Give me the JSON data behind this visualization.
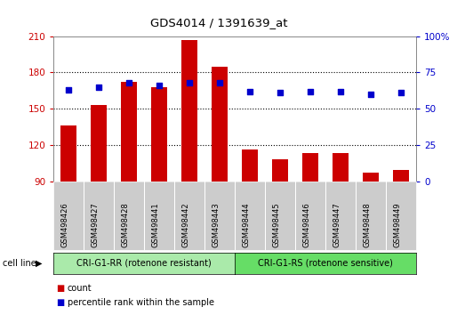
{
  "title": "GDS4014 / 1391639_at",
  "samples": [
    "GSM498426",
    "GSM498427",
    "GSM498428",
    "GSM498441",
    "GSM498442",
    "GSM498443",
    "GSM498444",
    "GSM498445",
    "GSM498446",
    "GSM498447",
    "GSM498448",
    "GSM498449"
  ],
  "counts": [
    136,
    153,
    172,
    168,
    207,
    185,
    116,
    108,
    113,
    113,
    97,
    99
  ],
  "percentile_ranks": [
    63,
    65,
    68,
    66,
    68,
    68,
    62,
    61,
    62,
    62,
    60,
    61
  ],
  "bar_color": "#cc0000",
  "dot_color": "#0000cc",
  "ylim_left": [
    90,
    210
  ],
  "ylim_right": [
    0,
    100
  ],
  "yticks_left": [
    90,
    120,
    150,
    180,
    210
  ],
  "yticks_right": [
    0,
    25,
    50,
    75,
    100
  ],
  "group1_label": "CRI-G1-RR (rotenone resistant)",
  "group2_label": "CRI-G1-RS (rotenone sensitive)",
  "group1_color": "#aaeaaa",
  "group2_color": "#66dd66",
  "group1_count": 6,
  "group2_count": 6,
  "cell_line_label": "cell line",
  "legend_count_label": "count",
  "legend_pct_label": "percentile rank within the sample",
  "background_color": "#ffffff",
  "tick_bg_color": "#cccccc",
  "border_color": "#888888"
}
